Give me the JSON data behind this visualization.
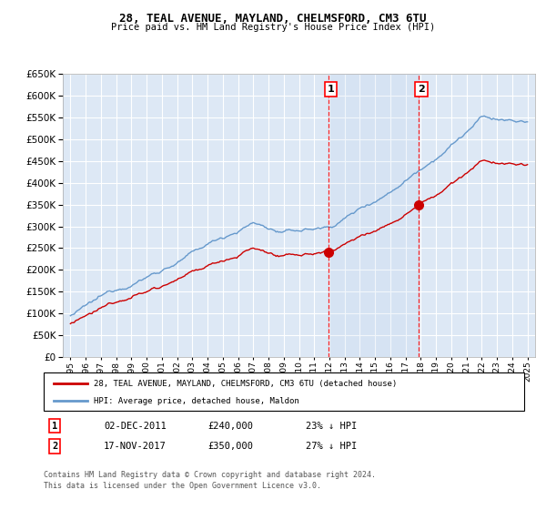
{
  "title": "28, TEAL AVENUE, MAYLAND, CHELMSFORD, CM3 6TU",
  "subtitle": "Price paid vs. HM Land Registry's House Price Index (HPI)",
  "ylim": [
    0,
    650000
  ],
  "yticks": [
    0,
    50000,
    100000,
    150000,
    200000,
    250000,
    300000,
    350000,
    400000,
    450000,
    500000,
    550000,
    600000,
    650000
  ],
  "background_color": "#ffffff",
  "plot_bg_color": "#dde8f5",
  "grid_color": "#ffffff",
  "hpi_color": "#6699cc",
  "price_color": "#cc0000",
  "transaction1": {
    "date_label": "02-DEC-2011",
    "year": 2011.92,
    "price": 240000,
    "pct": "23%",
    "label": "1"
  },
  "transaction2": {
    "date_label": "17-NOV-2017",
    "year": 2017.88,
    "price": 350000,
    "pct": "27%",
    "label": "2"
  },
  "legend_line1": "28, TEAL AVENUE, MAYLAND, CHELMSFORD, CM3 6TU (detached house)",
  "legend_line2": "HPI: Average price, detached house, Maldon",
  "footer1": "Contains HM Land Registry data © Crown copyright and database right 2024.",
  "footer2": "This data is licensed under the Open Government Licence v3.0."
}
